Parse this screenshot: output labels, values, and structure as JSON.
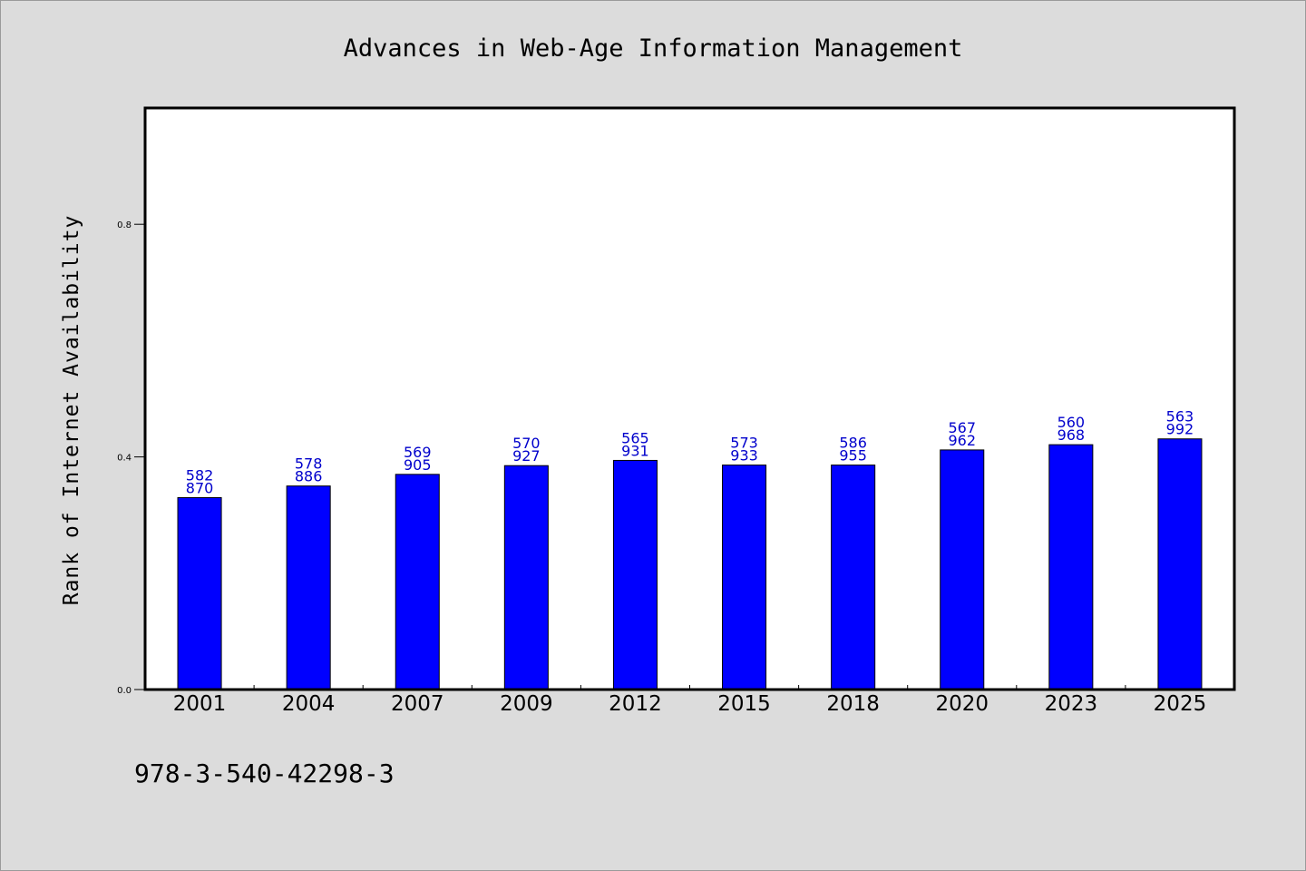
{
  "chart_data": {
    "type": "bar",
    "title": "Advances in Web-Age Information Management",
    "xlabel": "",
    "ylabel": "Rank of Internet Availability",
    "categories": [
      "2001",
      "2004",
      "2007",
      "2009",
      "2012",
      "2015",
      "2018",
      "2020",
      "2023",
      "2025"
    ],
    "values": [
      0.33,
      0.35,
      0.37,
      0.385,
      0.394,
      0.386,
      0.386,
      0.412,
      0.421,
      0.431
    ],
    "data_labels": [
      [
        "582",
        "870"
      ],
      [
        "578",
        "886"
      ],
      [
        "569",
        "905"
      ],
      [
        "570",
        "927"
      ],
      [
        "565",
        "931"
      ],
      [
        "573",
        "933"
      ],
      [
        "586",
        "955"
      ],
      [
        "567",
        "962"
      ],
      [
        "560",
        "968"
      ],
      [
        "563",
        "992"
      ]
    ],
    "yticks": [
      "0.0",
      "0.4",
      "0.8"
    ],
    "ylim": [
      0,
      1.0
    ],
    "grid": false,
    "legend": "none",
    "bar_color": "#0000ff",
    "label_color": "#0000cc"
  },
  "footer": {
    "isbn": "978-3-540-42298-3"
  }
}
